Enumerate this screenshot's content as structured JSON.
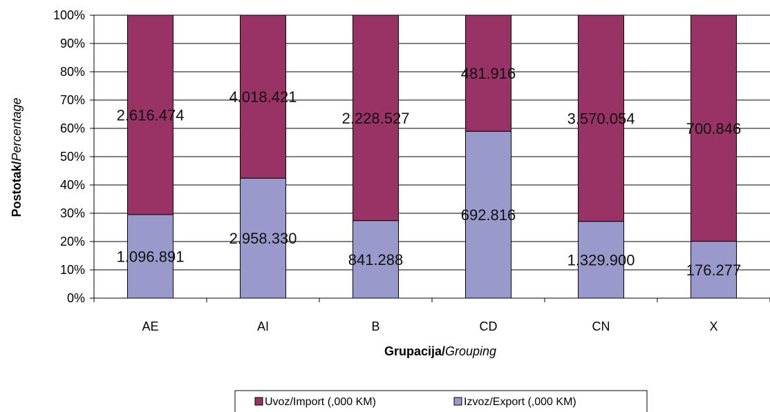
{
  "chart_data": {
    "type": "bar",
    "stacked": "percent",
    "categories": [
      "AE",
      "AI",
      "B",
      "CD",
      "CN",
      "X"
    ],
    "series": [
      {
        "name": "Izvoz/Export (,000 KM)",
        "color": "#9999cc",
        "values": [
          1096891,
          2958330,
          841288,
          692816,
          1329900,
          176277
        ],
        "labels": [
          "1.096.891",
          "2.958.330",
          "841.288",
          "692.816",
          "1.329.900",
          "176.277"
        ]
      },
      {
        "name": "Uvoz/Import (,000 KM)",
        "color": "#993366",
        "values": [
          2616474,
          4018421,
          2228527,
          481916,
          3570054,
          700846
        ],
        "labels": [
          "2.616.474",
          "4.018.421",
          "2.228.527",
          "481.916",
          "3.570.054",
          "700.846"
        ]
      }
    ],
    "ylim": [
      0,
      100
    ],
    "yticks": [
      "0%",
      "10%",
      "20%",
      "30%",
      "40%",
      "50%",
      "60%",
      "70%",
      "80%",
      "90%",
      "100%"
    ],
    "xlabel": {
      "bold": "Grupacija/",
      "italic": "Grouping"
    },
    "ylabel": {
      "bold": "Postotak/",
      "italic": "Percentage"
    },
    "grid": true,
    "legend": {
      "placement": "bottom",
      "order": [
        "Uvoz/Import (,000 KM)",
        "Izvoz/Export (,000 KM)"
      ]
    }
  }
}
